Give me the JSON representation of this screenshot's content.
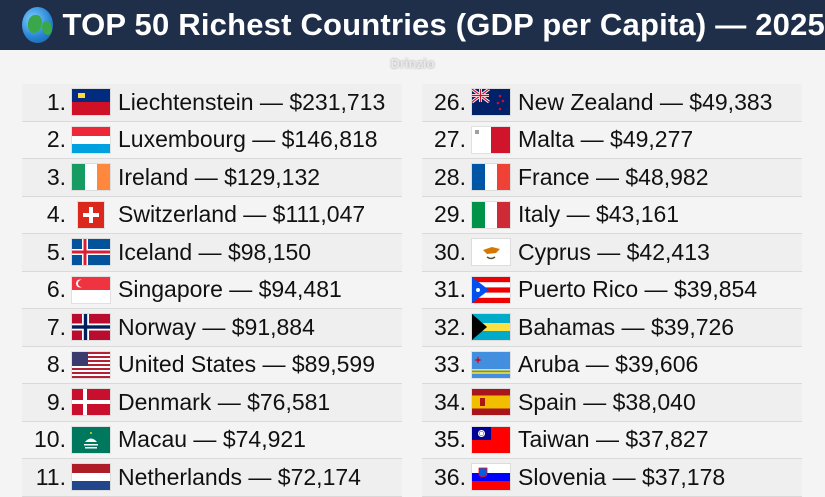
{
  "header": {
    "title": "TOP 50 Richest Countries (GDP per Capita) — 2025"
  },
  "watermark": "Drinzio",
  "left_list": [
    {
      "rank": "1.",
      "text": "Liechtenstein — $231,713",
      "flag": "liechtenstein-flag"
    },
    {
      "rank": "2.",
      "text": "Luxembourg — $146,818",
      "flag": "luxembourg-flag"
    },
    {
      "rank": "3.",
      "text": "Ireland — $129,132",
      "flag": "ireland-flag"
    },
    {
      "rank": "4.",
      "text": "Switzerland — $111,047",
      "flag": "switzerland-flag"
    },
    {
      "rank": "5.",
      "text": "Iceland — $98,150",
      "flag": "iceland-flag"
    },
    {
      "rank": "6.",
      "text": "Singapore — $94,481",
      "flag": "singapore-flag"
    },
    {
      "rank": "7.",
      "text": "Norway — $91,884",
      "flag": "norway-flag"
    },
    {
      "rank": "8.",
      "text": "United States — $89,599",
      "flag": "united-states-flag"
    },
    {
      "rank": "9.",
      "text": "Denmark — $76,581",
      "flag": "denmark-flag"
    },
    {
      "rank": "10.",
      "text": "Macau — $74,921",
      "flag": "macau-flag"
    },
    {
      "rank": "11.",
      "text": "Netherlands — $72,174",
      "flag": "netherlands-flag"
    }
  ],
  "right_list": [
    {
      "rank": "26.",
      "text": "New Zealand — $49,383",
      "flag": "new-zealand-flag"
    },
    {
      "rank": "27.",
      "text": "Malta — $49,277",
      "flag": "malta-flag"
    },
    {
      "rank": "28.",
      "text": "France — $48,982",
      "flag": "france-flag"
    },
    {
      "rank": "29.",
      "text": "Italy — $43,161",
      "flag": "italy-flag"
    },
    {
      "rank": "30.",
      "text": "Cyprus — $42,413",
      "flag": "cyprus-flag"
    },
    {
      "rank": "31.",
      "text": "Puerto Rico — $39,854",
      "flag": "puerto-rico-flag"
    },
    {
      "rank": "32.",
      "text": "Bahamas — $39,726",
      "flag": "bahamas-flag"
    },
    {
      "rank": "33.",
      "text": "Aruba — $39,606",
      "flag": "aruba-flag"
    },
    {
      "rank": "34.",
      "text": "Spain — $38,040",
      "flag": "spain-flag"
    },
    {
      "rank": "35.",
      "text": "Taiwan — $37,827",
      "flag": "taiwan-flag"
    },
    {
      "rank": "36.",
      "text": "Slovenia — $37,178",
      "flag": "slovenia-flag"
    }
  ]
}
